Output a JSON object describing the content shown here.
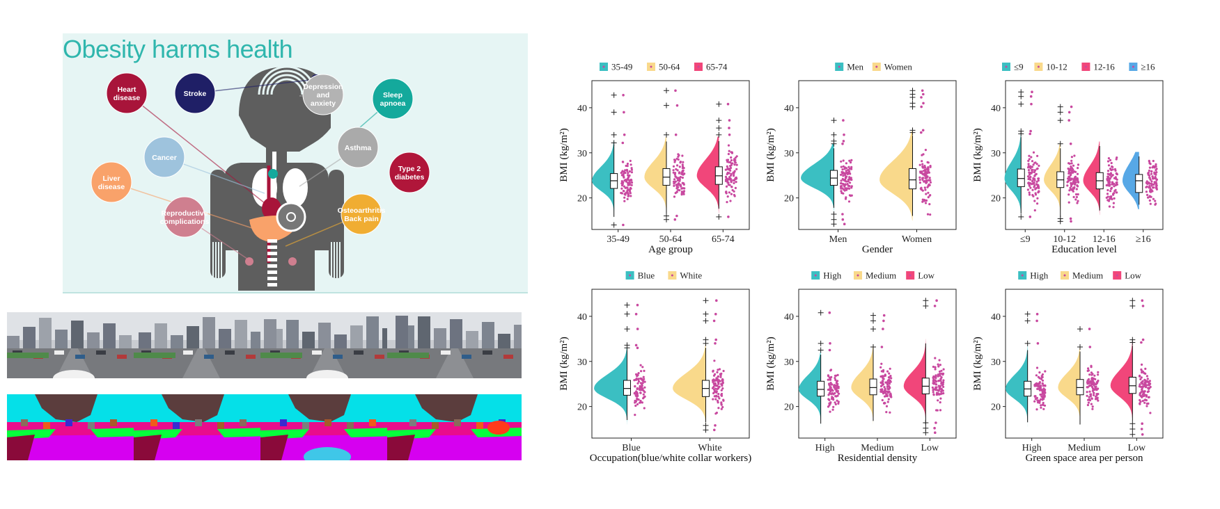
{
  "infographic": {
    "title": "Obesity harms health",
    "conditions": [
      {
        "label": "Heart disease",
        "lines": [
          "Heart",
          "disease"
        ],
        "color": "#a8143a"
      },
      {
        "label": "Stroke",
        "lines": [
          "Stroke"
        ],
        "color": "#1f1f66"
      },
      {
        "label": "Depression and anxiety",
        "lines": [
          "Depression",
          "and",
          "anxiety"
        ],
        "color": "#b3b3b3"
      },
      {
        "label": "Sleep apnoea",
        "lines": [
          "Sleep",
          "apnoea"
        ],
        "color": "#14a99c"
      },
      {
        "label": "Cancer",
        "lines": [
          "Cancer"
        ],
        "color": "#9ec3dd"
      },
      {
        "label": "Asthma",
        "lines": [
          "Asthma"
        ],
        "color": "#aaaaaa"
      },
      {
        "label": "Type 2 diabetes",
        "lines": [
          "Type 2",
          "diabetes"
        ],
        "color": "#b0163a"
      },
      {
        "label": "Liver disease",
        "lines": [
          "Liver",
          "disease"
        ],
        "color": "#f9a26a"
      },
      {
        "label": "Reproductive complications",
        "lines": [
          "Reproductive",
          "complications"
        ],
        "color": "#cf7f8f"
      },
      {
        "label": "Osteoarthritis Back pain",
        "lines": [
          "Osteoarthritis",
          "Back pain"
        ],
        "color": "#f0ad32"
      }
    ]
  },
  "street_views": [
    {
      "name": "street-view-1"
    },
    {
      "name": "street-view-2"
    },
    {
      "name": "street-view-3"
    },
    {
      "name": "street-view-4"
    }
  ],
  "segmentation_maps": [
    {
      "name": "segmentation-1"
    },
    {
      "name": "segmentation-2"
    },
    {
      "name": "segmentation-3"
    },
    {
      "name": "segmentation-4"
    }
  ],
  "chart_data": [
    {
      "type": "raincloud",
      "xlabel": "Age group",
      "ylabel": "BMI (kg/m²)",
      "ylim": [
        13,
        46
      ],
      "yticks": [
        20,
        30,
        40
      ],
      "categories": [
        "35-49",
        "50-64",
        "65-74"
      ],
      "colors": [
        "#3bbfc2",
        "#f9d98b",
        "#f1467a"
      ],
      "point_color": "#c8489f",
      "series": [
        {
          "name": "35-49",
          "median": 23.8,
          "q1": 22.1,
          "q3": 25.4,
          "min": 15.8,
          "max": 31.8,
          "outliers": [
            14,
            32.2,
            34,
            39,
            42.8
          ]
        },
        {
          "name": "50-64",
          "median": 24.6,
          "q1": 22.8,
          "q3": 26.5,
          "min": 16.6,
          "max": 32.5,
          "outliers": [
            15.2,
            16,
            34,
            40.5,
            43.8
          ]
        },
        {
          "name": "65-74",
          "median": 24.9,
          "q1": 23.0,
          "q3": 26.9,
          "min": 17.6,
          "max": 32.6,
          "outliers": [
            15.8,
            34,
            35.5,
            37.2,
            40.8
          ]
        }
      ]
    },
    {
      "type": "raincloud",
      "xlabel": "Gender",
      "ylabel": "BMI (kg/m²)",
      "ylim": [
        13,
        46
      ],
      "yticks": [
        20,
        30,
        40
      ],
      "categories": [
        "Men",
        "Women"
      ],
      "colors": [
        "#3bbfc2",
        "#f9d98b"
      ],
      "point_color": "#c8489f",
      "series": [
        {
          "name": "Men",
          "median": 24.4,
          "q1": 22.8,
          "q3": 26.1,
          "min": 17.8,
          "max": 31.0,
          "outliers": [
            14.2,
            15.2,
            16.4,
            32,
            32.6,
            34,
            37.2
          ]
        },
        {
          "name": "Women",
          "median": 24.0,
          "q1": 22.0,
          "q3": 26.5,
          "min": 16.0,
          "max": 33.8,
          "outliers": [
            34.5,
            35,
            40.2,
            41,
            42.3,
            43,
            43.8
          ]
        }
      ]
    },
    {
      "type": "raincloud",
      "xlabel": "Education level",
      "ylabel": "BMI (kg/m²)",
      "ylim": [
        13,
        46
      ],
      "yticks": [
        20,
        30,
        40
      ],
      "categories": [
        "≤9",
        "10-12",
        "12-16",
        "≥16"
      ],
      "colors": [
        "#3bbfc2",
        "#f9d98b",
        "#f1467a",
        "#57a8e6"
      ],
      "point_color": "#c8489f",
      "series": [
        {
          "name": "≤9",
          "median": 24.3,
          "q1": 22.5,
          "q3": 26.4,
          "min": 16.5,
          "max": 33.5,
          "outliers": [
            15.8,
            34.2,
            34.8,
            40.8,
            42.5,
            43.5
          ]
        },
        {
          "name": "10-12",
          "median": 24.0,
          "q1": 22.3,
          "q3": 25.8,
          "min": 15.8,
          "max": 31.0,
          "outliers": [
            14.8,
            15.4,
            32,
            37.2,
            39,
            40.2
          ]
        },
        {
          "name": "12-16",
          "median": 23.8,
          "q1": 22.0,
          "q3": 25.6,
          "min": 17.2,
          "max": 31.5,
          "outliers": []
        },
        {
          "name": "≥16",
          "median": 23.8,
          "q1": 21.2,
          "q3": 25.2,
          "min": 18.5,
          "max": 29.2,
          "outliers": []
        }
      ]
    },
    {
      "type": "raincloud",
      "xlabel": "Occupation(blue/white collar workers)",
      "ylabel": "BMI (kg/m²)",
      "ylim": [
        13,
        46
      ],
      "yticks": [
        20,
        30,
        40
      ],
      "categories": [
        "Blue",
        "White"
      ],
      "colors": [
        "#3bbfc2",
        "#f9d98b"
      ],
      "point_color": "#c8489f",
      "series": [
        {
          "name": "Blue",
          "median": 24.0,
          "q1": 22.5,
          "q3": 25.8,
          "min": 17.0,
          "max": 32.5,
          "outliers": [
            33,
            33.6,
            37.2,
            40.5,
            42.5
          ]
        },
        {
          "name": "White",
          "median": 24.0,
          "q1": 22.2,
          "q3": 25.8,
          "min": 16.5,
          "max": 33.0,
          "outliers": [
            14.8,
            15.8,
            34,
            34.8,
            39,
            40.5,
            43.5
          ]
        }
      ]
    },
    {
      "type": "raincloud",
      "xlabel": "Residential density",
      "ylabel": "BMI (kg/m²)",
      "ylim": [
        13,
        46
      ],
      "yticks": [
        20,
        30,
        40
      ],
      "categories": [
        "High",
        "Medium",
        "Low"
      ],
      "colors": [
        "#3bbfc2",
        "#f9d98b",
        "#f1467a"
      ],
      "point_color": "#c8489f",
      "series": [
        {
          "name": "High",
          "median": 23.8,
          "q1": 22.3,
          "q3": 25.6,
          "min": 16.2,
          "max": 31.5,
          "outliers": [
            32.5,
            34,
            40.8
          ]
        },
        {
          "name": "Medium",
          "median": 24.2,
          "q1": 22.6,
          "q3": 26.1,
          "min": 16.8,
          "max": 32.8,
          "outliers": [
            33.2,
            37.2,
            39,
            40.2
          ]
        },
        {
          "name": "Low",
          "median": 24.5,
          "q1": 22.8,
          "q3": 26.3,
          "min": 16.0,
          "max": 34.0,
          "outliers": [
            14.2,
            15.2,
            16.4,
            42.3,
            43.5
          ]
        }
      ]
    },
    {
      "type": "raincloud",
      "xlabel": "Green space area per person",
      "ylabel": "BMI (kg/m²)",
      "ylim": [
        13,
        46
      ],
      "yticks": [
        20,
        30,
        40
      ],
      "categories": [
        "High",
        "Medium",
        "Low"
      ],
      "colors": [
        "#3bbfc2",
        "#f9d98b",
        "#f1467a"
      ],
      "point_color": "#c8489f",
      "series": [
        {
          "name": "High",
          "median": 23.9,
          "q1": 22.3,
          "q3": 25.6,
          "min": 16.5,
          "max": 32.5,
          "outliers": [
            34,
            39,
            40.5
          ]
        },
        {
          "name": "Medium",
          "median": 24.2,
          "q1": 22.6,
          "q3": 26.0,
          "min": 16.0,
          "max": 32.2,
          "outliers": [
            33.2,
            37.2
          ]
        },
        {
          "name": "Low",
          "median": 24.6,
          "q1": 22.9,
          "q3": 26.5,
          "min": 16.8,
          "max": 33.5,
          "outliers": [
            13.8,
            15,
            16.2,
            34.2,
            34.8,
            42.3,
            43.5
          ]
        }
      ]
    }
  ]
}
